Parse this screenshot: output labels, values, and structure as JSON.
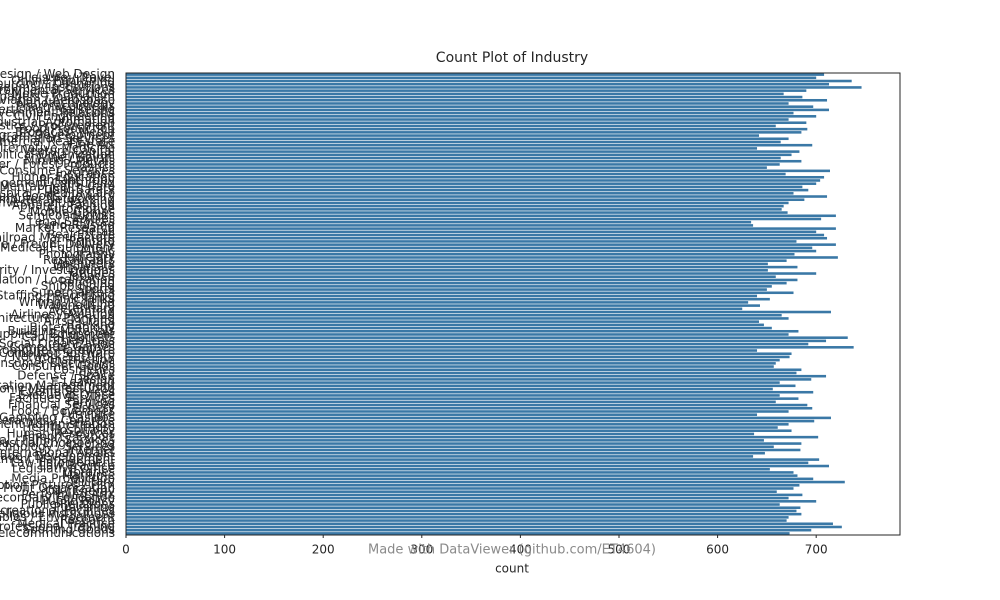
{
  "chart_data": {
    "type": "barh",
    "title": "Count Plot of Industry",
    "xlabel": "count",
    "watermark": "Made with DataViewer (github.com/ET4604)",
    "color": "#3a78a6",
    "categories": [
      "Graphic Design / Web Design",
      "Leisure / Travel",
      "Online Publishing",
      "Outsourcing / Offshoring",
      "Museums / Institutions",
      "Environmental Services",
      "Entertainment / Movie Production",
      "Newspapers / Journalism",
      "Aviation / Aerospace",
      "Nanotechnology",
      "Pharmaceuticals",
      "Advertising / Marketing",
      "Government Relations",
      "Civil Engineering",
      "Animation",
      "Industrial Automation",
      "Logistics / Procurement",
      "Food Production",
      "Broadcast Media",
      "Program Development",
      "Information Services",
      "Commercial Real Estate",
      "Fine Art",
      "Alternative Medicine",
      "Venture Capital",
      "Political Organization",
      "Wine / Spirits",
      "Mining / Metals",
      "Paper / Forest Products",
      "Plastics",
      "Consumer Services",
      "Insurance",
      "Higher Education",
      "Philanthropy",
      "Management Consulting",
      "Mental Health Care",
      "Public Safety",
      "Hospital / Health Care",
      "Luxury Goods / Jewelry",
      "Computer Networking",
      "Investment Banking",
      "Apparel / Fashion",
      "Automotive",
      "Mobile Games",
      "Semiconductors",
      "Textiles",
      "Legal Services",
      "Fund-Raising",
      "Market Research",
      "Retail",
      "Real Estate",
      "Railroad Manufacture",
      "Printing",
      "Package / Freight Delivery",
      "Medical Equipment",
      "Music",
      "Photography",
      "Judiciary",
      "Restaurants",
      "Machinery",
      "Wholesale",
      "Security / Investigations",
      "Utilities",
      "Tobacco",
      "Translation / Localization",
      "Ranching",
      "Shipbuilding",
      "Sports",
      "Supermarkets",
      "Staffing / Recruiting",
      "Think Tanks",
      "Writing / Editing",
      "Warehousing",
      "Veterinary",
      "Accounting",
      "Airlines / Aviation",
      "Architecture / Planning",
      "Arts / Crafts",
      "Banking",
      "Biotechnology",
      "Building Materials",
      "Business Supplies / Equipment",
      "Capital Markets",
      "Chemicals",
      "Civic / Social Organization",
      "Computer Games",
      "Computer Hardware",
      "Computer Software",
      "Computer / Network Security",
      "Construction",
      "Consumer Electronics",
      "Consumer Goods",
      "Cosmetics",
      "Dairy",
      "Defense / Space",
      "Design",
      "E-Learning",
      "Education Management",
      "Electrical / Electronic Manufacturing",
      "Events Services",
      "Executive Office",
      "Facilities Services",
      "Farming",
      "Financial Services",
      "Fishery",
      "Food / Beverages",
      "Furniture",
      "Gambling / Casinos",
      "Glass / Ceramics / Concrete",
      "Government Administration",
      "Health / Fitness",
      "Hospitality",
      "Human Resources",
      "Import / Export",
      "Individual / Family Services",
      "Industrial Engineering",
      "Information Technology / Services",
      "Internet",
      "International Affairs",
      "International Trade / Development",
      "Investment Management",
      "Law Enforcement",
      "Law Practice",
      "Legislative Office",
      "Libraries",
      "Maritime",
      "Media Production",
      "Military",
      "Motion Pictures / Film",
      "Non-Profit Organization",
      "Oil / Energy",
      "Performing Arts",
      "Primary / Secondary Education",
      "Public Policy",
      "Public Relations",
      "Publishing",
      "Recreational Facilities",
      "Religious Institutions",
      "Renewables / Environment",
      "Research",
      "Medical Practice",
      "Professional Training",
      "Sporting Goods",
      "Telecommunications"
    ],
    "values": [
      708,
      700,
      736,
      713,
      746,
      690,
      667,
      686,
      711,
      672,
      697,
      713,
      677,
      700,
      672,
      690,
      659,
      691,
      685,
      642,
      672,
      664,
      696,
      640,
      683,
      675,
      664,
      685,
      663,
      650,
      714,
      669,
      708,
      704,
      700,
      686,
      692,
      677,
      711,
      688,
      672,
      667,
      665,
      671,
      720,
      705,
      634,
      636,
      720,
      700,
      708,
      711,
      680,
      720,
      696,
      700,
      678,
      722,
      670,
      651,
      681,
      651,
      700,
      659,
      681,
      670,
      655,
      650,
      677,
      640,
      653,
      631,
      643,
      625,
      715,
      665,
      672,
      642,
      647,
      655,
      682,
      672,
      732,
      710,
      692,
      738,
      640,
      675,
      673,
      663,
      659,
      657,
      685,
      680,
      710,
      695,
      663,
      679,
      656,
      697,
      663,
      682,
      659,
      691,
      696,
      672,
      640,
      715,
      698,
      672,
      661,
      675,
      637,
      702,
      647,
      685,
      657,
      684,
      648,
      636,
      703,
      692,
      713,
      653,
      677,
      681,
      697,
      729,
      683,
      677,
      660,
      686,
      672,
      700,
      663,
      684,
      680,
      685,
      672,
      670,
      717,
      726,
      695,
      673
    ],
    "xlim": [
      0,
      785
    ],
    "xticks": [
      0,
      100,
      200,
      300,
      400,
      500,
      600,
      700
    ]
  }
}
